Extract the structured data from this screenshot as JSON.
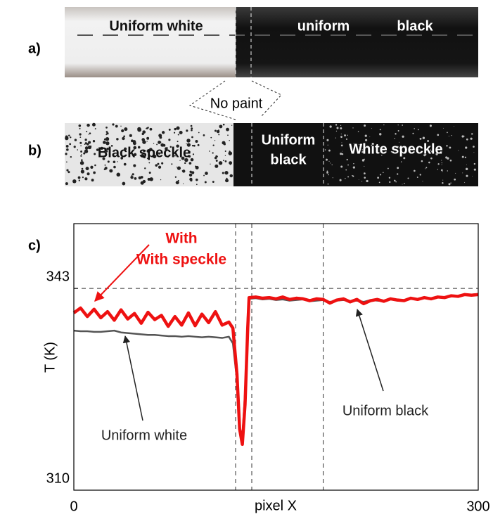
{
  "figure": {
    "panel_labels": [
      "a)",
      "b)",
      "c)"
    ],
    "photo_a": [
      "Uniform white",
      "uniform",
      "black"
    ],
    "no_paint": "No paint",
    "photo_b": [
      "Black speckle",
      "Uniform",
      "black",
      "White speckle"
    ]
  },
  "chart_data": {
    "type": "line",
    "x_label": "pixel X",
    "y_label": "T (K)",
    "xlim": [
      0,
      300
    ],
    "xticks": [
      0,
      300
    ],
    "ylim": [
      310,
      353.6
    ],
    "yticks": [
      310,
      343
    ],
    "hlines": [
      343
    ],
    "vlines": [
      120,
      132,
      185
    ],
    "annotations": [
      "Uniform white",
      "Uniform black"
    ],
    "x": [
      0,
      5,
      10,
      15,
      20,
      25,
      30,
      35,
      40,
      45,
      50,
      55,
      60,
      65,
      70,
      75,
      80,
      85,
      90,
      95,
      100,
      105,
      110,
      115,
      118,
      121,
      123,
      125,
      127,
      129,
      130,
      135,
      140,
      145,
      150,
      155,
      160,
      165,
      170,
      175,
      180,
      185,
      190,
      195,
      200,
      205,
      210,
      215,
      220,
      225,
      230,
      235,
      240,
      245,
      250,
      255,
      260,
      265,
      270,
      275,
      280,
      285,
      290,
      295,
      300
    ],
    "series": [
      {
        "name": "With speckle",
        "color": "#ee1111",
        "values": [
          339.0,
          339.8,
          338.4,
          339.6,
          338.2,
          339.2,
          337.8,
          339.5,
          338.0,
          338.9,
          337.3,
          339.1,
          337.9,
          338.6,
          336.8,
          338.4,
          337.0,
          339.0,
          336.9,
          338.8,
          337.4,
          339.2,
          337.0,
          337.5,
          336.5,
          329,
          320,
          317.5,
          324,
          336.5,
          341.5,
          341.6,
          341.4,
          341.5,
          341.3,
          341.6,
          341.2,
          341.4,
          341.3,
          341.0,
          341.3,
          341.2,
          340.6,
          341.1,
          341.3,
          340.8,
          341.2,
          340.5,
          341.0,
          341.2,
          340.9,
          341.3,
          341.1,
          341.0,
          341.4,
          341.2,
          341.5,
          341.3,
          341.6,
          341.5,
          341.8,
          341.7,
          342.0,
          341.9,
          342.0
        ]
      },
      {
        "color": "#555555",
        "values": [
          336.1,
          336.0,
          336.0,
          335.9,
          335.9,
          336.0,
          336.1,
          335.8,
          335.7,
          335.6,
          335.5,
          335.4,
          335.4,
          335.3,
          335.2,
          335.2,
          335.1,
          335.2,
          335.1,
          335.0,
          335.1,
          335.0,
          334.9,
          335.1,
          334.0,
          328,
          319.5,
          318.6,
          326,
          338.5,
          341.3,
          341.4,
          341.2,
          341.3,
          341.1,
          341.2,
          341.0,
          341.1,
          341.2,
          340.9,
          341.0,
          341.1,
          340.8,
          341.0,
          341.1,
          340.9,
          341.0,
          340.8,
          341.1,
          341.0,
          340.9,
          341.2,
          341.0,
          341.1,
          341.3,
          341.2,
          341.4,
          341.3,
          341.5,
          341.6,
          341.7,
          341.8,
          341.9,
          342.0,
          342.1
        ]
      }
    ]
  }
}
